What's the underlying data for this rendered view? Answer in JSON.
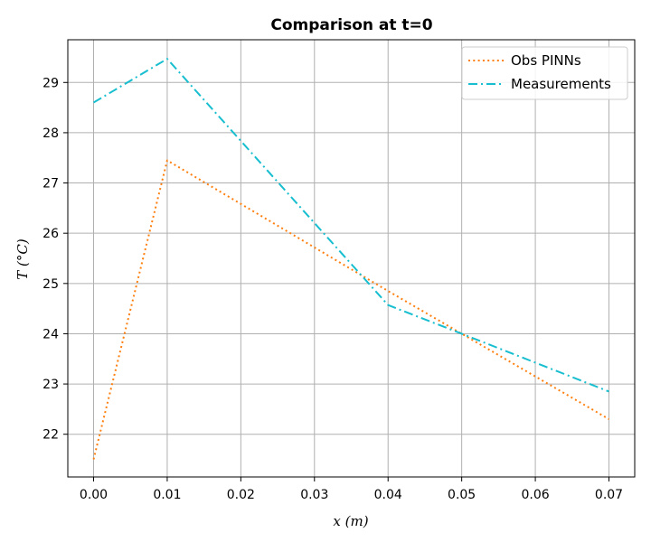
{
  "chart_data": {
    "type": "line",
    "title": "Comparison at t=0",
    "xlabel": "x (m)",
    "ylabel": "T (°C)",
    "xlim": [
      -0.0035,
      0.0735
    ],
    "ylim": [
      21.15,
      29.85
    ],
    "xticks": [
      0.0,
      0.01,
      0.02,
      0.03,
      0.04,
      0.05,
      0.06,
      0.07
    ],
    "xtick_labels": [
      "0.00",
      "0.01",
      "0.02",
      "0.03",
      "0.04",
      "0.05",
      "0.06",
      "0.07"
    ],
    "yticks": [
      22,
      23,
      24,
      25,
      26,
      27,
      28,
      29
    ],
    "ytick_labels": [
      "22",
      "23",
      "24",
      "25",
      "26",
      "27",
      "28",
      "29"
    ],
    "grid": true,
    "legend_position": "top-right",
    "x": [
      0.0,
      0.01,
      0.04,
      0.05,
      0.07
    ],
    "series": [
      {
        "name": "Obs PINNs",
        "values": [
          21.5,
          27.45,
          24.85,
          24.0,
          22.3
        ],
        "color": "#ff7f0e",
        "style": "dotted"
      },
      {
        "name": "Measurements",
        "values": [
          28.6,
          29.47,
          24.57,
          24.0,
          22.85
        ],
        "color": "#17becf",
        "style": "dashdot"
      }
    ]
  }
}
